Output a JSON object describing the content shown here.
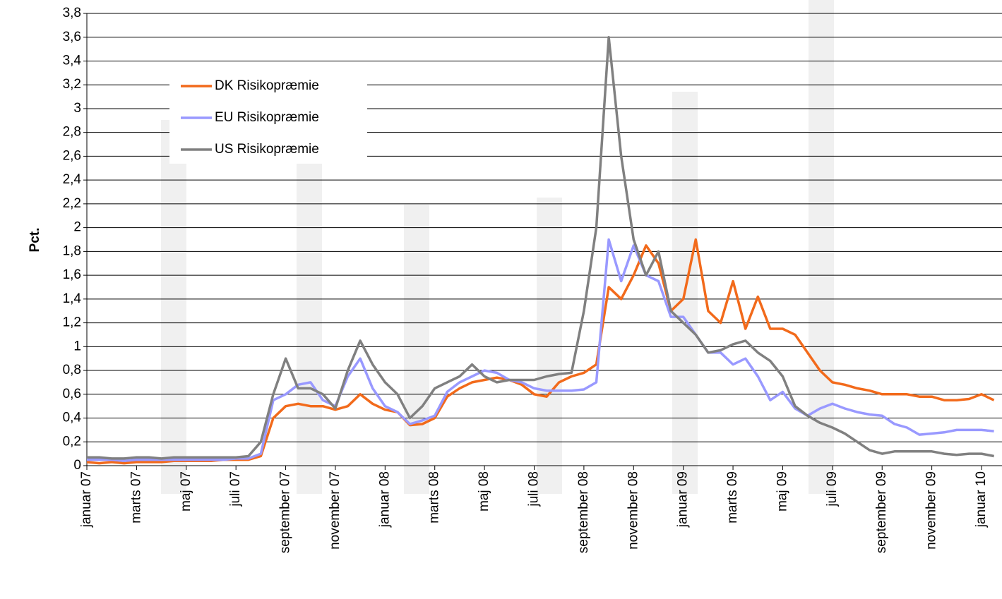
{
  "chart_data": {
    "type": "line",
    "y_label": "Pct.",
    "categories": [
      "januar 07",
      null,
      null,
      null,
      "marts 07",
      null,
      null,
      null,
      "maj 07",
      null,
      null,
      null,
      "juli 07",
      null,
      null,
      null,
      "september 07",
      null,
      null,
      null,
      "november 07",
      null,
      null,
      null,
      "januar 08",
      null,
      null,
      null,
      "marts 08",
      null,
      null,
      null,
      "maj 08",
      null,
      null,
      null,
      "juli 08",
      null,
      null,
      null,
      "september 08",
      null,
      null,
      null,
      "november 08",
      null,
      null,
      null,
      "januar 09",
      null,
      null,
      null,
      "marts 09",
      null,
      null,
      null,
      "maj 09",
      null,
      null,
      null,
      "juli 09",
      null,
      null,
      null,
      "september 09",
      null,
      null,
      null,
      "november 09",
      null,
      null,
      null,
      "januar 10",
      null
    ],
    "series": [
      {
        "name": "DK Risikopræmie",
        "color": "#f26a1b",
        "values": [
          0.03,
          0.02,
          0.03,
          0.02,
          0.03,
          0.03,
          0.03,
          0.04,
          0.04,
          0.04,
          0.04,
          0.05,
          0.05,
          0.05,
          0.08,
          0.4,
          0.5,
          0.52,
          0.5,
          0.5,
          0.47,
          0.5,
          0.6,
          0.52,
          0.47,
          0.45,
          0.34,
          0.35,
          0.4,
          0.58,
          0.65,
          0.7,
          0.72,
          0.74,
          0.72,
          0.68,
          0.6,
          0.58,
          0.7,
          0.75,
          0.78,
          0.85,
          1.5,
          1.4,
          1.6,
          1.85,
          1.7,
          1.3,
          1.4,
          1.9,
          1.3,
          1.2,
          1.55,
          1.15,
          1.42,
          1.15,
          1.15,
          1.1,
          0.95,
          0.8,
          0.7,
          0.68,
          0.65,
          0.63,
          0.6,
          0.6,
          0.6,
          0.58,
          0.58,
          0.55,
          0.55,
          0.56,
          0.6,
          0.55
        ]
      },
      {
        "name": "EU Risikopræmie",
        "color": "#9999ff",
        "values": [
          0.05,
          0.05,
          0.05,
          0.04,
          0.05,
          0.05,
          0.05,
          0.05,
          0.05,
          0.05,
          0.05,
          0.05,
          0.06,
          0.06,
          0.1,
          0.55,
          0.6,
          0.68,
          0.7,
          0.55,
          0.5,
          0.75,
          0.9,
          0.65,
          0.5,
          0.45,
          0.35,
          0.38,
          0.42,
          0.62,
          0.7,
          0.75,
          0.8,
          0.78,
          0.72,
          0.7,
          0.65,
          0.63,
          0.63,
          0.63,
          0.64,
          0.7,
          1.9,
          1.55,
          1.85,
          1.6,
          1.55,
          1.25,
          1.25,
          1.1,
          0.95,
          0.95,
          0.85,
          0.9,
          0.75,
          0.55,
          0.62,
          0.48,
          0.42,
          0.48,
          0.52,
          0.48,
          0.45,
          0.43,
          0.42,
          0.35,
          0.32,
          0.26,
          0.27,
          0.28,
          0.3,
          0.3,
          0.3,
          0.29
        ]
      },
      {
        "name": "US Risikopræmie",
        "color": "#808080",
        "values": [
          0.07,
          0.07,
          0.06,
          0.06,
          0.07,
          0.07,
          0.06,
          0.07,
          0.07,
          0.07,
          0.07,
          0.07,
          0.07,
          0.08,
          0.2,
          0.6,
          0.9,
          0.65,
          0.65,
          0.6,
          0.48,
          0.8,
          1.05,
          0.85,
          0.7,
          0.6,
          0.4,
          0.5,
          0.65,
          0.7,
          0.75,
          0.85,
          0.75,
          0.7,
          0.72,
          0.72,
          0.72,
          0.75,
          0.77,
          0.78,
          1.3,
          2.0,
          3.6,
          2.6,
          1.9,
          1.6,
          1.8,
          1.3,
          1.2,
          1.1,
          0.95,
          0.97,
          1.02,
          1.05,
          0.95,
          0.88,
          0.75,
          0.5,
          0.42,
          0.36,
          0.32,
          0.27,
          0.2,
          0.13,
          0.1,
          0.12,
          0.12,
          0.12,
          0.12,
          0.1,
          0.09,
          0.1,
          0.1,
          0.08
        ]
      }
    ],
    "ylim": [
      0,
      3.8
    ],
    "yticks": [
      0,
      {
        "value": 0.2,
        "label": "0,2"
      },
      {
        "value": 0.4,
        "label": "0,4"
      },
      {
        "value": 0.6,
        "label": "0,6"
      },
      {
        "value": 0.8,
        "label": "0,8"
      },
      1,
      {
        "value": 1.2,
        "label": "1,2"
      },
      {
        "value": 1.4,
        "label": "1,4"
      },
      {
        "value": 1.6,
        "label": "1,6"
      },
      {
        "value": 1.8,
        "label": "1,8"
      },
      2,
      {
        "value": 2.2,
        "label": "2,2"
      },
      {
        "value": 2.4,
        "label": "2,4"
      },
      {
        "value": 2.6,
        "label": "2,6"
      },
      {
        "value": 2.8,
        "label": "2,8"
      },
      3,
      {
        "value": 3.2,
        "label": "3,2"
      },
      {
        "value": 3.4,
        "label": "3,4"
      },
      {
        "value": 3.6,
        "label": "3,6"
      },
      {
        "value": 3.8,
        "label": "3,8"
      }
    ],
    "grid": true,
    "legend": "upper left"
  }
}
